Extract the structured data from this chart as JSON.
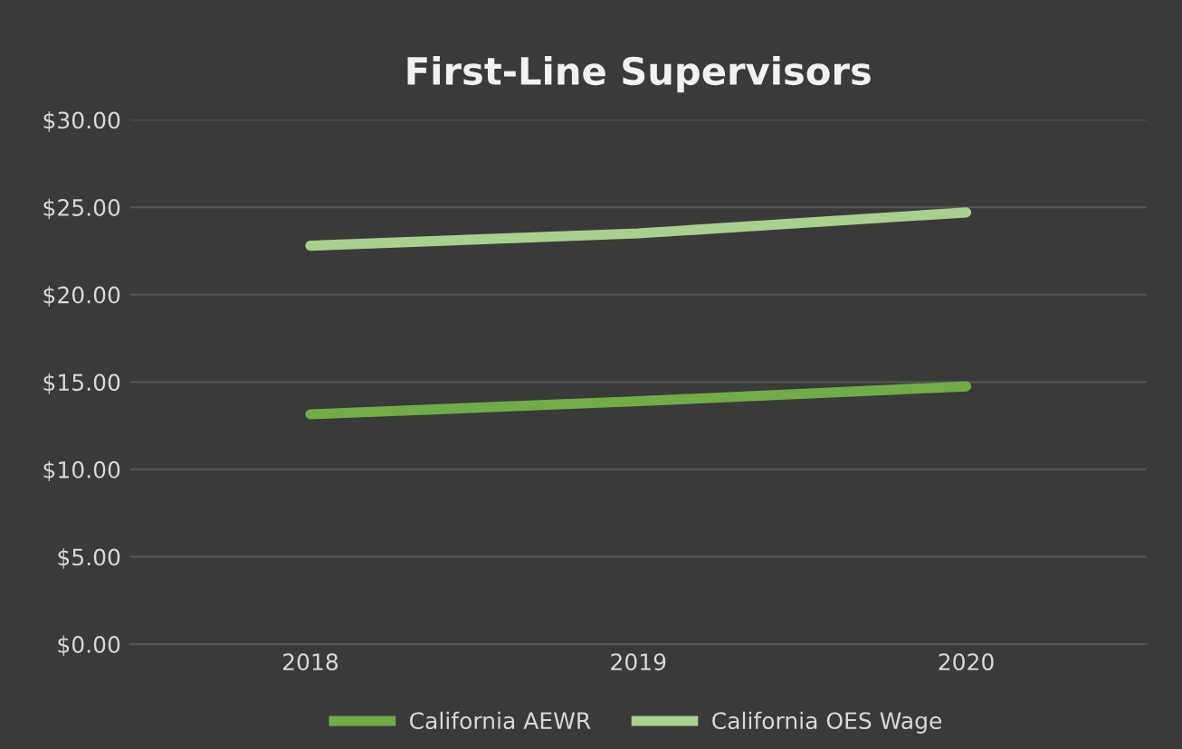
{
  "chart_data": {
    "type": "line",
    "title": "First-Line Supervisors",
    "categories": [
      "2018",
      "2019",
      "2020"
    ],
    "series": [
      {
        "name": "California AEWR",
        "color": "#70ad47",
        "values": [
          13.15,
          13.9,
          14.75
        ]
      },
      {
        "name": "California OES Wage",
        "color": "#a9d18e",
        "values": [
          22.8,
          23.5,
          24.7
        ]
      }
    ],
    "ylim": [
      0,
      30
    ],
    "yticks": [
      {
        "value": 0,
        "label": "$0.00"
      },
      {
        "value": 5,
        "label": "$5.00"
      },
      {
        "value": 10,
        "label": "$10.00"
      },
      {
        "value": 15,
        "label": "$15.00"
      },
      {
        "value": 20,
        "label": "$20.00"
      },
      {
        "value": 25,
        "label": "$25.00"
      },
      {
        "value": 30,
        "label": "$30.00"
      }
    ],
    "grid": "y",
    "legend": "bottom",
    "marker": "none",
    "line_style": "solid"
  }
}
